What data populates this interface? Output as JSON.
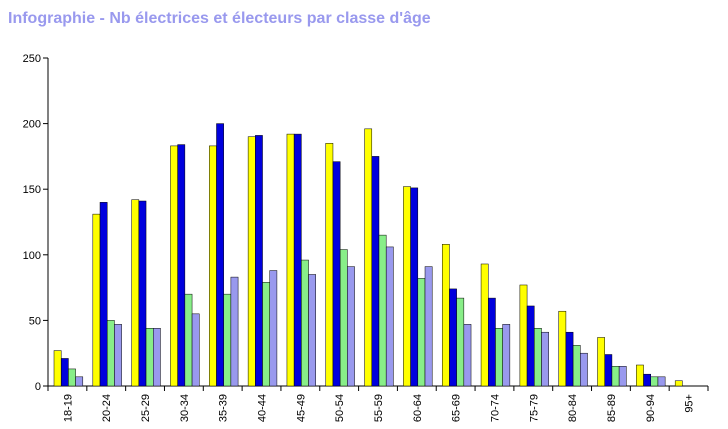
{
  "title": "Infographie - Nb électrices et électeurs par classe d'âge",
  "colors": {
    "title": "#9999ee",
    "series": [
      "#ffff00",
      "#0000dd",
      "#88ee88",
      "#9999ee"
    ],
    "axis": "#000000"
  },
  "chart_data": {
    "type": "bar",
    "title": "Infographie - Nb électrices et électeurs par classe d'âge",
    "xlabel": "",
    "ylabel": "",
    "ylim": [
      0,
      250
    ],
    "yticks": [
      0,
      50,
      100,
      150,
      200,
      250
    ],
    "grid": false,
    "legend": "none",
    "categories": [
      "18-19",
      "20-24",
      "25-29",
      "30-34",
      "35-39",
      "40-44",
      "45-49",
      "50-54",
      "55-59",
      "60-64",
      "65-69",
      "70-74",
      "75-79",
      "80-84",
      "85-89",
      "90-94",
      "95+"
    ],
    "series": [
      {
        "values": [
          27,
          131,
          142,
          183,
          183,
          190,
          192,
          185,
          196,
          152,
          108,
          93,
          77,
          57,
          37,
          16,
          4
        ]
      },
      {
        "values": [
          21,
          140,
          141,
          184,
          200,
          191,
          192,
          171,
          175,
          151,
          74,
          67,
          61,
          41,
          24,
          9,
          0
        ]
      },
      {
        "values": [
          13,
          50,
          44,
          70,
          70,
          79,
          96,
          104,
          115,
          82,
          67,
          44,
          44,
          31,
          15,
          7,
          0
        ]
      },
      {
        "values": [
          7,
          47,
          44,
          55,
          83,
          88,
          85,
          91,
          106,
          91,
          47,
          47,
          41,
          25,
          15,
          7,
          0
        ]
      }
    ]
  }
}
